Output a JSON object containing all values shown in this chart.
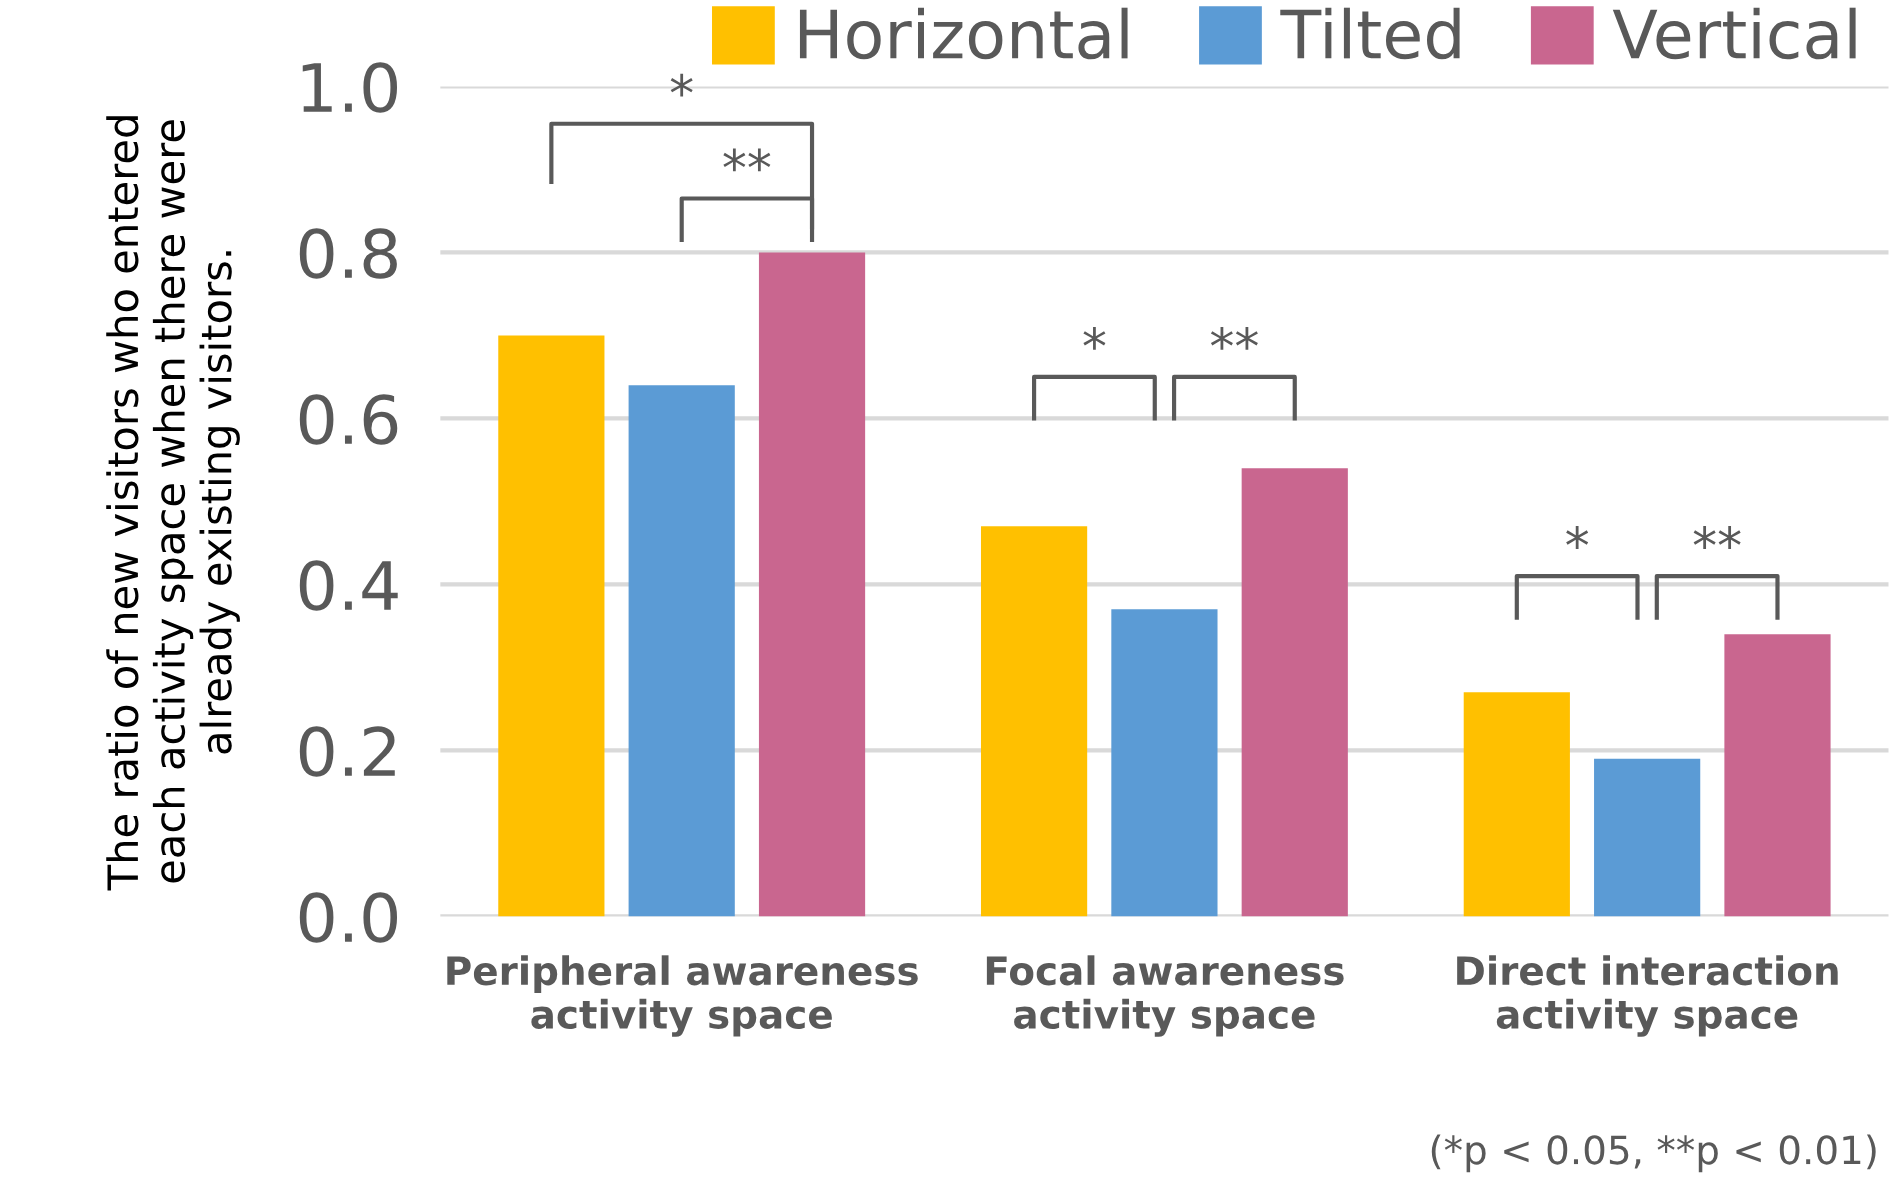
{
  "chart_data": {
    "type": "bar",
    "ylabel": "The ratio of new visitors who entered\neach activity space when there were\nalready existing visitors.",
    "categories": [
      "Peripheral awareness\nactivity space",
      "Focal awareness\nactivity space",
      "Direct interaction\nactivity space"
    ],
    "series": [
      {
        "name": "Horizontal",
        "color": "#ffc000",
        "values": [
          0.7,
          0.47,
          0.27
        ]
      },
      {
        "name": "Tilted",
        "color": "#5b9bd5",
        "values": [
          0.64,
          0.37,
          0.19
        ]
      },
      {
        "name": "Vertical",
        "color": "#c9668f",
        "values": [
          0.8,
          0.54,
          0.34
        ]
      }
    ],
    "ylim": [
      0,
      1.0
    ],
    "yticks": [
      {
        "value": 0,
        "label": "0.0"
      },
      0.2,
      0.4,
      0.6,
      0.8,
      {
        "value": 1,
        "label": "1.0"
      }
    ],
    "grid": "y",
    "legend": "top right",
    "annotations": [
      "*",
      "**",
      "*",
      "**",
      "*",
      "**",
      "(*p < 0.05, **p < 0.01)"
    ]
  }
}
